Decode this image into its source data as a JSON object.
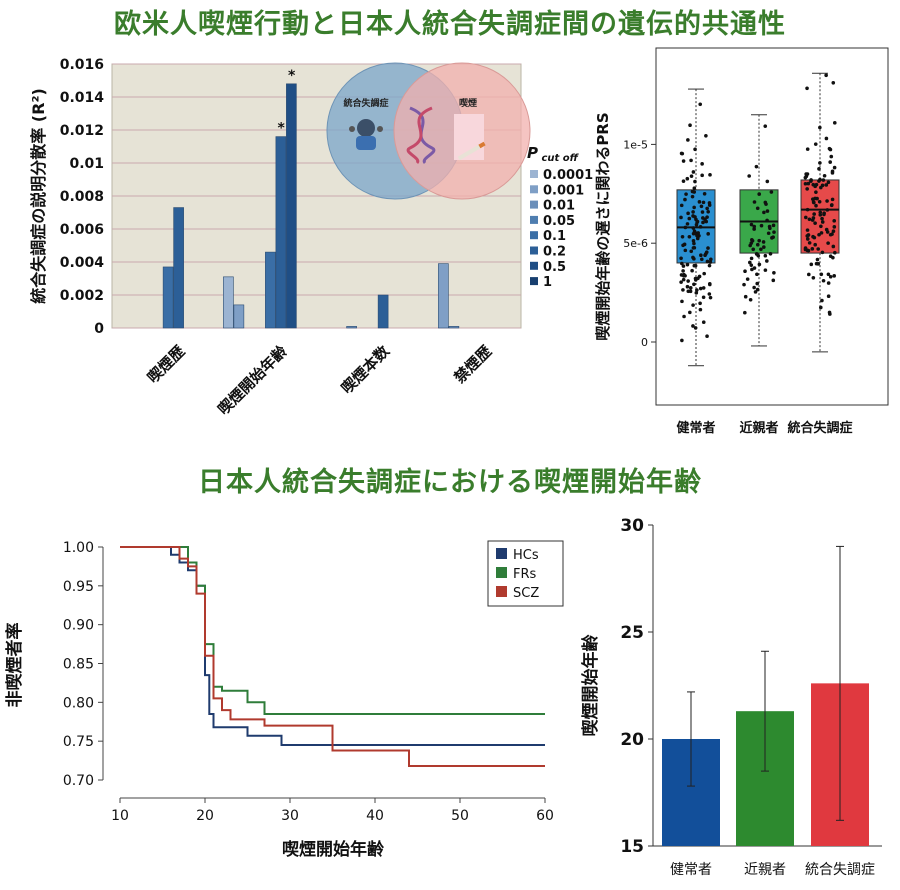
{
  "headings": {
    "top": "欧米人喫煙行動と日本人統合失調症間の遺伝的共通性",
    "bottom": "日本人統合失調症における喫煙開始年齢"
  },
  "chart_data": [
    {
      "type": "bar",
      "ylabel": "統合失調症の説明分散率 (R²)",
      "ylim": [
        0,
        0.016
      ],
      "yticks": [
        "0",
        "0.002",
        "0.004",
        "0.006",
        "0.008",
        "0.01",
        "0.012",
        "0.014",
        "0.016"
      ],
      "categories": [
        "喫煙歴",
        "喫煙開始年齢",
        "喫煙本数",
        "禁煙歴"
      ],
      "legend_title": "P cut off",
      "legend_title_main": "P",
      "legend_title_sub": "cut off",
      "series": [
        {
          "name": "0.0001",
          "color": "#9cb4d2",
          "values": [
            0,
            0.0031,
            0,
            0
          ]
        },
        {
          "name": "0.001",
          "color": "#7f9fc6",
          "values": [
            0,
            0.0014,
            0,
            0.0039
          ]
        },
        {
          "name": "0.01",
          "color": "#6b8fba",
          "values": [
            0,
            0,
            0.0001,
            0.0001
          ]
        },
        {
          "name": "0.05",
          "color": "#4f7eb0",
          "values": [
            0,
            0,
            0,
            0
          ]
        },
        {
          "name": "0.1",
          "color": "#3a6ea6",
          "values": [
            0.0037,
            0.0046,
            0,
            0
          ]
        },
        {
          "name": "0.2",
          "color": "#2c5f97",
          "values": [
            0.0073,
            0.0116,
            0.002,
            0
          ]
        },
        {
          "name": "0.5",
          "color": "#1f4e85",
          "values": [
            0,
            0.0148,
            0,
            0
          ]
        },
        {
          "name": "1",
          "color": "#183f6f",
          "values": [
            0,
            0,
            0,
            0
          ]
        }
      ],
      "annotations": [
        "*",
        "*"
      ],
      "inset": {
        "left": "統合失調症",
        "right": "喫煙"
      }
    },
    {
      "type": "boxplot",
      "ylabel": "喫煙開始年齢の遅さに関わるPRS",
      "yticks": [
        "0",
        "5e-6",
        "1e-5"
      ],
      "categories": [
        "健常者",
        "近親者",
        "統合失調症"
      ],
      "colors": [
        "#2a8fd0",
        "#3aa84a",
        "#e64a4a"
      ],
      "boxes": [
        {
          "min": -1.2e-06,
          "q1": 4e-06,
          "median": 5.8e-06,
          "q3": 7.7e-06,
          "max": 1.28e-05
        },
        {
          "min": -2e-07,
          "q1": 4.5e-06,
          "median": 6.1e-06,
          "q3": 7.7e-06,
          "max": 1.15e-05
        },
        {
          "min": -5e-07,
          "q1": 4.5e-06,
          "median": 6.7e-06,
          "q3": 8.2e-06,
          "max": 1.36e-05
        }
      ]
    },
    {
      "type": "line",
      "xlabel": "喫煙開始年齢",
      "ylabel": "非喫煙者率",
      "xlim": [
        10,
        60
      ],
      "ylim": [
        0.7,
        1.0
      ],
      "xticks": [
        "10",
        "20",
        "30",
        "40",
        "50",
        "60"
      ],
      "yticks": [
        "0.70",
        "0.75",
        "0.80",
        "0.85",
        "0.90",
        "0.95",
        "1.00"
      ],
      "series": [
        {
          "name": "HCs",
          "color": "#1f3b6e",
          "points": [
            [
              10,
              1.0
            ],
            [
              16,
              1.0
            ],
            [
              16,
              0.99
            ],
            [
              17,
              0.99
            ],
            [
              17,
              0.98
            ],
            [
              18,
              0.98
            ],
            [
              18,
              0.97
            ],
            [
              19,
              0.97
            ],
            [
              19,
              0.95
            ],
            [
              20,
              0.95
            ],
            [
              20,
              0.835
            ],
            [
              20.5,
              0.835
            ],
            [
              20.5,
              0.785
            ],
            [
              21,
              0.785
            ],
            [
              21,
              0.768
            ],
            [
              25,
              0.768
            ],
            [
              25,
              0.757
            ],
            [
              29,
              0.757
            ],
            [
              29,
              0.745
            ],
            [
              60,
              0.745
            ]
          ]
        },
        {
          "name": "FRs",
          "color": "#2f7d3a",
          "points": [
            [
              10,
              1.0
            ],
            [
              18,
              1.0
            ],
            [
              18,
              0.98
            ],
            [
              19,
              0.98
            ],
            [
              19,
              0.95
            ],
            [
              20,
              0.95
            ],
            [
              20,
              0.875
            ],
            [
              21,
              0.875
            ],
            [
              21,
              0.82
            ],
            [
              22,
              0.82
            ],
            [
              22,
              0.815
            ],
            [
              25,
              0.815
            ],
            [
              25,
              0.8
            ],
            [
              27,
              0.8
            ],
            [
              27,
              0.785
            ],
            [
              60,
              0.785
            ]
          ]
        },
        {
          "name": "SCZ",
          "color": "#b03a2e",
          "points": [
            [
              10,
              1.0
            ],
            [
              17,
              1.0
            ],
            [
              17,
              0.985
            ],
            [
              18,
              0.985
            ],
            [
              18,
              0.975
            ],
            [
              19,
              0.975
            ],
            [
              19,
              0.94
            ],
            [
              20,
              0.94
            ],
            [
              20,
              0.86
            ],
            [
              21,
              0.86
            ],
            [
              21,
              0.805
            ],
            [
              22,
              0.805
            ],
            [
              22,
              0.79
            ],
            [
              23,
              0.79
            ],
            [
              23,
              0.778
            ],
            [
              27,
              0.778
            ],
            [
              27,
              0.77
            ],
            [
              35,
              0.77
            ],
            [
              35,
              0.738
            ],
            [
              44,
              0.738
            ],
            [
              44,
              0.718
            ],
            [
              60,
              0.718
            ]
          ]
        }
      ]
    },
    {
      "type": "bar",
      "ylabel": "喫煙開始年齢",
      "ylim": [
        15,
        30
      ],
      "yticks": [
        "15",
        "20",
        "25",
        "30"
      ],
      "categories": [
        "健常者",
        "近親者",
        "統合失調症"
      ],
      "colors": [
        "#124f9a",
        "#2d8a2f",
        "#e0393f"
      ],
      "values": [
        20.0,
        21.3,
        22.6
      ],
      "errors": [
        2.2,
        2.8,
        6.4
      ]
    }
  ]
}
